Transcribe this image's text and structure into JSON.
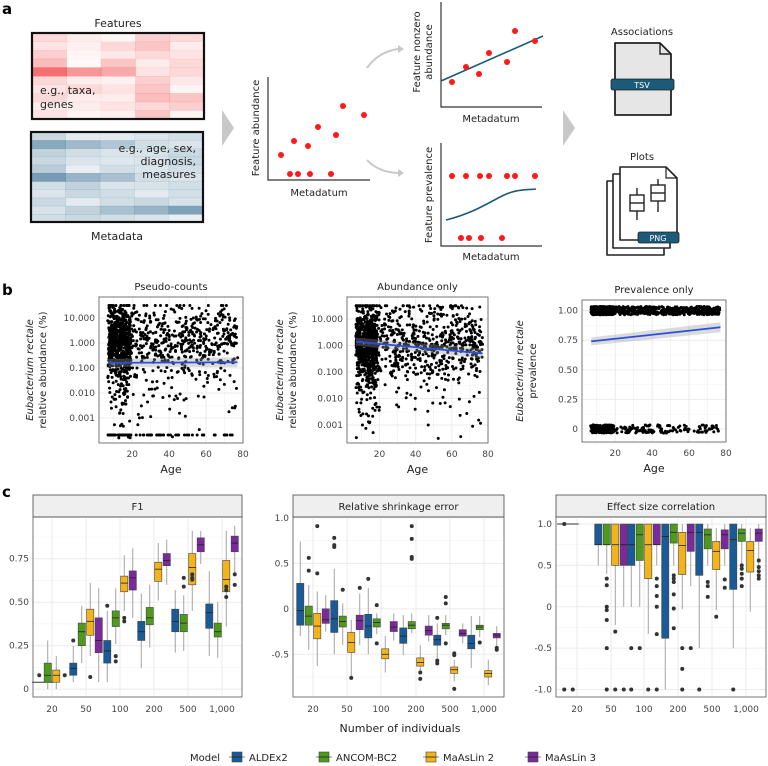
{
  "panel_labels": {
    "a": "a",
    "b": "b",
    "c": "c"
  },
  "panel_a": {
    "features_label": "Features",
    "features_example": [
      "e.g., taxa,",
      "genes"
    ],
    "metadata_label": "Metadata",
    "metadata_example": [
      "e.g., age, sex,",
      "diagnosis,",
      "measures"
    ],
    "abundance_plot": {
      "ylabel": "Feature abundance",
      "xlabel": "Metadatum"
    },
    "nonzero_plot": {
      "ylabel": [
        "Feature nonzero",
        "abundance"
      ],
      "xlabel": "Metadatum"
    },
    "prevalence_plot": {
      "ylabel": "Feature prevalence",
      "xlabel": "Metadatum"
    },
    "outputs": {
      "associations_label": "Associations",
      "tsv_label": "TSV",
      "plots_label": "Plots",
      "png_label": "PNG"
    },
    "colors": {
      "features": "#f04040",
      "metadata": "#5a86a4",
      "points": "#ff1a1a",
      "fit": "#1c5a7a",
      "arrow": "#c8c8c8"
    }
  },
  "colors": {
    "ALDEx2": "#1a5a96",
    "ANCOM-BC2": "#4e9a1c",
    "MaAsLin 2": "#f2b418",
    "MaAsLin 3": "#7a2a9a",
    "fit_line": "#2a4fe0"
  },
  "legend": {
    "title": "Model",
    "items": [
      "ALDEx2",
      "ANCOM-BC2",
      "MaAsLin 2",
      "MaAsLin 3"
    ]
  },
  "chart_data": [
    {
      "type": "scatter",
      "title": "Pseudo-counts",
      "xlabel": "Age",
      "ylabel": [
        "Eubacterium rectale",
        "relative abundance (%)"
      ],
      "y_scale": "log",
      "xlim": [
        2,
        80
      ],
      "ylim": [
        0.0001,
        69
      ],
      "x_ticks": [
        "20",
        "40",
        "60",
        "80"
      ],
      "y_ticks": [
        "10.000",
        "1.000",
        "0.100",
        "0.010",
        "0.001"
      ],
      "fit": {
        "x": [
          7,
          77
        ],
        "y": [
          0.16,
          0.17
        ]
      },
      "grid": true
    },
    {
      "type": "scatter",
      "title": "Abundance only",
      "xlabel": "Age",
      "ylabel": [
        "Eubacterium rectale",
        "relative abundance (%)"
      ],
      "y_scale": "log",
      "xlim": [
        2,
        80
      ],
      "ylim": [
        0.00021,
        68
      ],
      "x_ticks": [
        "20",
        "40",
        "60",
        "80"
      ],
      "y_ticks": [
        "10.000",
        "1.000",
        "0.100",
        "0.010",
        "0.001"
      ],
      "fit": {
        "x": [
          7,
          77
        ],
        "y": [
          1.4,
          0.5
        ]
      },
      "grid": true
    },
    {
      "type": "scatter",
      "title": "Prevalence only",
      "xlabel": "Age",
      "ylabel": [
        "Eubacterium rectale",
        "prevalence"
      ],
      "y_scale": "linear",
      "xlim": [
        2,
        80
      ],
      "ylim": [
        -0.11,
        1.09
      ],
      "x_ticks": [
        "20",
        "40",
        "60",
        "80"
      ],
      "y_ticks": [
        "1.00",
        "0.75",
        "0.50",
        "0.25",
        "0"
      ],
      "fit": {
        "x": [
          7,
          77
        ],
        "y": [
          0.74,
          0.86
        ]
      },
      "grid": true
    },
    {
      "type": "box",
      "title": "F1",
      "xlabel": "",
      "categories": [
        "20",
        "50",
        "100",
        "200",
        "500",
        "1,000"
      ],
      "ylim": [
        -0.045,
        0.99
      ],
      "y_ticks": [
        0,
        0.25,
        0.5,
        0.75
      ],
      "y_tick_labels": [
        "0",
        "0.25",
        "0.50",
        "0.75"
      ],
      "series": [
        {
          "name": "ALDEx2",
          "boxes": [
            [
              0.04,
              0.04,
              0.04,
              0.04,
              0.04
            ],
            [
              0.04,
              0.08,
              0.12,
              0.15,
              0.25
            ],
            [
              0.04,
              0.15,
              0.22,
              0.28,
              0.45
            ],
            [
              0.12,
              0.28,
              0.33,
              0.39,
              0.55
            ],
            [
              0.21,
              0.33,
              0.39,
              0.46,
              0.57
            ],
            [
              0.19,
              0.35,
              0.44,
              0.49,
              0.68
            ]
          ],
          "outliers": [
            [
              0.08
            ],
            [
              0.28
            ],
            [
              0.48
            ],
            [],
            [],
            []
          ]
        },
        {
          "name": "ANCOM-BC2",
          "boxes": [
            [
              0,
              0.04,
              0.08,
              0.15,
              0.28
            ],
            [
              0.15,
              0.25,
              0.33,
              0.38,
              0.48
            ],
            [
              0.26,
              0.36,
              0.41,
              0.45,
              0.58
            ],
            [
              0.24,
              0.37,
              0.41,
              0.47,
              0.6
            ],
            [
              0.22,
              0.33,
              0.38,
              0.43,
              0.54
            ],
            [
              0.18,
              0.3,
              0.33,
              0.38,
              0.5
            ]
          ],
          "outliers": [
            [],
            [],
            [
              0.19,
              0.16
            ],
            [],
            [
              0.64,
              0.59
            ],
            []
          ]
        },
        {
          "name": "MaAsLin 2",
          "boxes": [
            [
              0,
              0.04,
              0.08,
              0.11,
              0.19
            ],
            [
              0.19,
              0.31,
              0.39,
              0.46,
              0.61
            ],
            [
              0.45,
              0.56,
              0.61,
              0.65,
              0.77
            ],
            [
              0.51,
              0.62,
              0.69,
              0.73,
              0.84
            ],
            [
              0.45,
              0.6,
              0.7,
              0.78,
              0.91
            ],
            [
              0.36,
              0.56,
              0.63,
              0.74,
              0.91
            ]
          ],
          "outliers": [
            [],
            [
              0.07
            ],
            [
              0.41,
              0.39
            ],
            [],
            [
              0.66,
              0.64,
              0.63
            ],
            [
              0.59,
              0.57,
              0.53
            ]
          ]
        },
        {
          "name": "MaAsLin 3",
          "boxes": [
            null,
            [
              0.04,
              0.21,
              0.28,
              0.41,
              0.58
            ],
            [
              0.41,
              0.57,
              0.64,
              0.68,
              0.81
            ],
            [
              0.6,
              0.71,
              0.74,
              0.78,
              0.86
            ],
            [
              0.72,
              0.79,
              0.83,
              0.87,
              0.91
            ],
            [
              0.66,
              0.79,
              0.84,
              0.88,
              0.94
            ]
          ],
          "outliers": [
            [
              0.08
            ],
            [],
            [],
            [],
            [],
            [
              0.66,
              0.6
            ]
          ]
        }
      ]
    },
    {
      "type": "box",
      "title": "Relative shrinkage error",
      "xlabel": "Number of individuals",
      "categories": [
        "20",
        "50",
        "100",
        "200",
        "500",
        "1,000"
      ],
      "ylim": [
        -0.97,
        1.01
      ],
      "y_ticks": [
        -0.5,
        0,
        0.5,
        1.0
      ],
      "y_tick_labels": [
        "-0.5",
        "0",
        "0.5",
        "1.0"
      ],
      "series": [
        {
          "name": "ALDEx2",
          "boxes": [
            [
              -0.3,
              -0.18,
              -0.02,
              0.28,
              0.74
            ],
            [
              -0.5,
              -0.26,
              -0.11,
              0.09,
              0.44
            ],
            [
              -0.5,
              -0.32,
              -0.19,
              -0.06,
              0.23
            ],
            [
              -0.51,
              -0.38,
              -0.3,
              -0.21,
              -0.07
            ],
            [
              -0.58,
              -0.4,
              -0.34,
              -0.29,
              -0.16
            ],
            [
              -0.65,
              -0.44,
              -0.38,
              -0.29,
              -0.08
            ]
          ],
          "outliers": [
            [],
            [
              0.78,
              0.7,
              0.68
            ],
            [
              0.33
            ],
            [],
            [
              -0.1,
              -0.57,
              -0.6
            ],
            []
          ]
        },
        {
          "name": "ANCOM-BC2",
          "boxes": [
            [
              -0.45,
              -0.18,
              -0.08,
              0.03,
              0.26
            ],
            [
              -0.4,
              -0.2,
              -0.14,
              -0.08,
              0.06
            ],
            [
              -0.28,
              -0.2,
              -0.15,
              -0.11,
              -0.05
            ],
            [
              -0.27,
              -0.22,
              -0.18,
              -0.14,
              -0.05
            ],
            [
              -0.29,
              -0.22,
              -0.18,
              -0.16,
              -0.07
            ],
            [
              -0.31,
              -0.23,
              -0.2,
              -0.18,
              -0.08
            ]
          ],
          "outliers": [
            [
              0.56,
              0.42
            ],
            [
              0.21
            ],
            [
              0.04,
              -0.38
            ],
            [
              0.91,
              0.77,
              0.57,
              0.55
            ],
            [
              0.13,
              0.06,
              -0.38
            ],
            [
              -0.37
            ]
          ]
        },
        {
          "name": "MaAsLin 2",
          "boxes": [
            [
              -0.63,
              -0.33,
              -0.19,
              -0.05,
              0.19
            ],
            [
              -0.77,
              -0.48,
              -0.37,
              -0.26,
              -0.12
            ],
            [
              -0.7,
              -0.55,
              -0.5,
              -0.44,
              -0.3
            ],
            [
              -0.71,
              -0.63,
              -0.59,
              -0.54,
              -0.4
            ],
            [
              -0.8,
              -0.71,
              -0.67,
              -0.64,
              -0.56
            ],
            [
              -0.84,
              -0.75,
              -0.71,
              -0.68,
              -0.56
            ]
          ],
          "outliers": [
            [
              0.39,
              0.91
            ],
            [
              -0.76
            ],
            [],
            [
              -0.77,
              -0.7
            ],
            [
              -0.49,
              -0.51,
              -0.88
            ],
            []
          ]
        },
        {
          "name": "MaAsLin 3",
          "boxes": [
            [
              -0.25,
              -0.16,
              -0.12,
              0.0,
              0.15
            ],
            [
              -0.4,
              -0.23,
              -0.13,
              -0.07,
              0.17
            ],
            [
              -0.35,
              -0.25,
              -0.2,
              -0.14,
              -0.05
            ],
            [
              -0.36,
              -0.29,
              -0.24,
              -0.19,
              -0.07
            ],
            [
              -0.38,
              -0.3,
              -0.27,
              -0.23,
              -0.16
            ],
            [
              -0.42,
              -0.32,
              -0.29,
              -0.27,
              -0.19
            ]
          ],
          "outliers": [
            [],
            [
              0.23
            ],
            [],
            [],
            [],
            [
              -0.43,
              -0.45
            ]
          ]
        }
      ]
    },
    {
      "type": "box",
      "title": "Effect size correlation",
      "xlabel": "",
      "categories": [
        "20",
        "50",
        "100",
        "200",
        "500",
        "1,000"
      ],
      "ylim": [
        -1.09,
        1.085
      ],
      "y_ticks": [
        -1,
        -0.5,
        0,
        0.5,
        1
      ],
      "y_tick_labels": [
        "-1.0",
        "-0.5",
        "0",
        "0.5",
        "1.0"
      ],
      "series": [
        {
          "name": "ALDEx2",
          "boxes": [
            [
              1,
              1,
              1,
              1,
              1
            ],
            [
              0.5,
              0.75,
              0.75,
              1,
              1
            ],
            [
              0,
              0.5,
              0.75,
              1,
              1
            ],
            [
              -1,
              -0.38,
              0.85,
              1,
              1
            ],
            [
              -0.5,
              0.38,
              0.9,
              1,
              1
            ],
            [
              -0.5,
              0.21,
              0.81,
              1,
              1
            ]
          ],
          "outliers": [
            [
              1,
              -1
            ],
            [],
            [
              -0.5,
              -1
            ],
            [],
            [
              -1
            ],
            [
              -1
            ]
          ]
        },
        {
          "name": "ANCOM-BC2",
          "boxes": [
            null,
            [
              0.4,
              0.75,
              0.75,
              1,
              1
            ],
            [
              0,
              0.56,
              0.87,
              1,
              1
            ],
            [
              0.5,
              0.77,
              0.9,
              1,
              1
            ],
            [
              0.5,
              0.7,
              0.87,
              0.94,
              1
            ],
            [
              0.5,
              0.79,
              0.89,
              0.94,
              1
            ]
          ],
          "outliers": [
            [
              -1
            ],
            [
              0.34,
              0.26,
              0,
              -0.04,
              -0.16,
              -0.5,
              -1
            ],
            [
              -0.5
            ],
            [
              0.38,
              0.34,
              0.3,
              0.15,
              -0.02,
              -0.26
            ],
            [
              0.3,
              0.25,
              0.12
            ],
            [
              0.5,
              0.46,
              0.4,
              0.34,
              0.25
            ]
          ]
        },
        {
          "name": "MaAsLin 2",
          "boxes": [
            null,
            [
              -0.22,
              0.5,
              0.75,
              1,
              1
            ],
            [
              -0.33,
              0.34,
              0.75,
              1,
              1
            ],
            [
              -0.03,
              0.39,
              0.74,
              0.9,
              1
            ],
            [
              -0.04,
              0.45,
              0.67,
              0.79,
              0.95
            ],
            [
              -0.06,
              0.42,
              0.68,
              0.79,
              0.95
            ]
          ],
          "outliers": [
            [],
            [
              -0.3,
              -1
            ],
            [
              -1
            ],
            [
              -0.5,
              -0.75,
              -1
            ],
            [
              -0.12
            ],
            []
          ]
        },
        {
          "name": "MaAsLin 3",
          "boxes": [
            null,
            [
              0,
              0.5,
              0.75,
              1,
              1
            ],
            [
              0.5,
              0.75,
              0.75,
              1,
              1
            ],
            [
              0.25,
              0.67,
              0.9,
              1,
              1
            ],
            [
              0.5,
              0.7,
              0.87,
              0.93,
              1
            ],
            [
              0.5,
              0.79,
              0.89,
              0.94,
              1
            ]
          ],
          "outliers": [
            [],
            [
              -1
            ],
            [
              0.34,
              0.25,
              0.13,
              0,
              -0.33,
              -1
            ],
            [
              -0.5
            ],
            [
              0.33,
              0.23
            ],
            [
              0.56,
              0.48,
              0.43,
              0.38,
              0.34
            ]
          ]
        }
      ]
    }
  ]
}
